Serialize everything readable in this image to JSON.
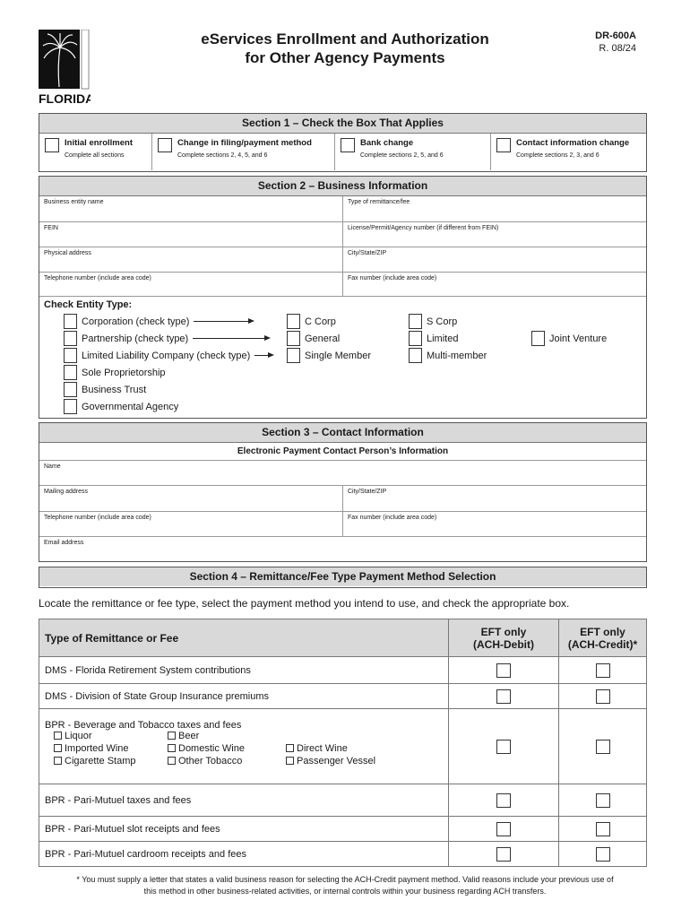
{
  "header": {
    "title_line1": "eServices Enrollment and Authorization",
    "title_line2": "for Other Agency Payments",
    "form_number": "DR-600A",
    "revision": "R. 08/24",
    "logo_text": "FLORIDA",
    "logo_side_text": "Department of Revenue"
  },
  "section1": {
    "title": "Section 1 – Check the Box That Applies",
    "options": [
      {
        "label": "Initial enrollment",
        "sub": "Complete all sections"
      },
      {
        "label": "Change in filing/payment method",
        "sub": "Complete sections 2, 4, 5, and 6"
      },
      {
        "label": "Bank change",
        "sub": "Complete sections 2, 5, and 6"
      },
      {
        "label": "Contact information change",
        "sub": "Complete sections 2, 3, and 6"
      }
    ]
  },
  "section2": {
    "title": "Section 2 – Business Information",
    "fields": [
      [
        "Business entity name",
        "Type of remittance/fee"
      ],
      [
        "FEIN",
        "License/Permit/Agency number (if different from FEIN)"
      ],
      [
        "Physical address",
        "City/State/ZIP"
      ],
      [
        "Telephone number (include area code)",
        "Fax number (include area code)"
      ]
    ],
    "entity_title": "Check Entity Type:",
    "entities": [
      "Corporation (check type)",
      "Partnership (check type)",
      "Limited Liability Company (check type)",
      "Sole Proprietorship",
      "Business Trust",
      "Governmental Agency"
    ],
    "corp_types": [
      "C Corp",
      "S Corp"
    ],
    "partnership_types": [
      "General",
      "Limited",
      "Joint Venture"
    ],
    "llc_types": [
      "Single Member",
      "Multi-member"
    ]
  },
  "section3": {
    "title": "Section 3 – Contact Information",
    "subtitle": "Electronic Payment Contact Person’s Information",
    "name": "Name",
    "mailing": "Mailing address",
    "city": "City/State/ZIP",
    "phone": "Telephone number (include area code)",
    "fax": "Fax number (include area code)",
    "email": "Email address"
  },
  "section4": {
    "title": "Section 4 – Remittance/Fee Type Payment Method Selection",
    "instruction": "Locate the remittance or fee type, select the payment method you intend to use, and check the appropriate box.",
    "col_type": "Type of Remittance or Fee",
    "col_debit_1": "EFT only",
    "col_debit_2": "(ACH-Debit)",
    "col_credit_1": "EFT only",
    "col_credit_2": "(ACH-Credit)*",
    "rows": [
      "DMS - Florida Retirement System contributions",
      "DMS - Division of State Group Insurance premiums",
      "BPR - Beverage and Tobacco taxes and fees",
      "BPR - Pari-Mutuel taxes and fees",
      "BPR - Pari-Mutuel slot receipts and fees",
      "BPR - Pari-Mutuel cardroom receipts and fees"
    ],
    "bev_sub": [
      "Liquor",
      "Beer",
      "Imported Wine",
      "Domestic Wine",
      "Direct Wine",
      "Cigarette Stamp",
      "Other Tobacco",
      "Passenger Vessel"
    ]
  },
  "footnote": {
    "line1": "* You must supply a letter that states a valid business reason for selecting the ACH-Credit payment method.  Valid reasons include your previous use of",
    "line2": "this method in other business-related activities, or internal controls within your business regarding ACH transfers."
  }
}
